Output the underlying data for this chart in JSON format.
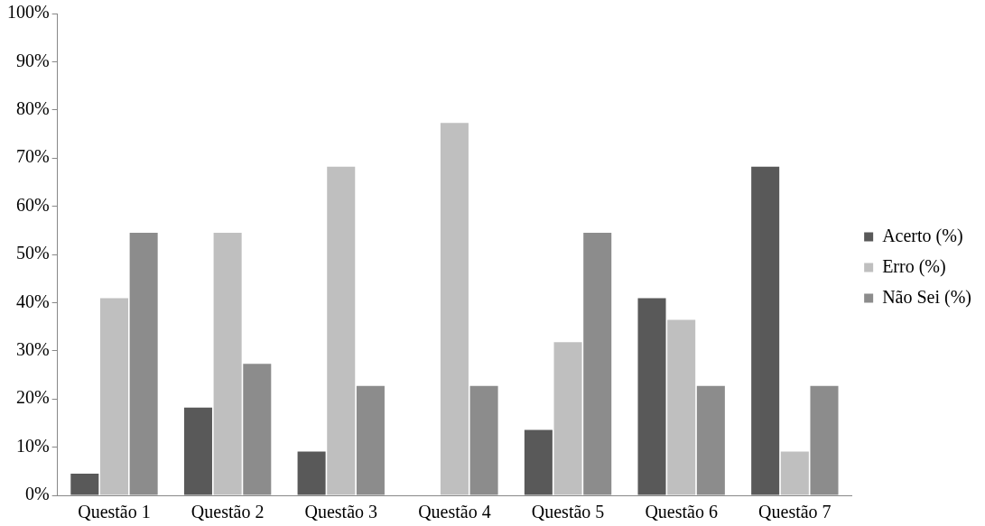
{
  "chart_data": {
    "type": "bar",
    "categories": [
      "Questão 1",
      "Questão 2",
      "Questão 3",
      "Questão 4",
      "Questão 5",
      "Questão 6",
      "Questão 7"
    ],
    "series": [
      {
        "name": "Acerto (%)",
        "color": "#595959",
        "values": [
          4.5,
          18.2,
          9.1,
          0,
          13.6,
          40.9,
          68.2
        ]
      },
      {
        "name": "Erro (%)",
        "color": "#bfbfbf",
        "values": [
          40.9,
          54.5,
          68.2,
          77.3,
          31.8,
          36.4,
          9.1
        ]
      },
      {
        "name": "Não Sei (%)",
        "color": "#8c8c8c",
        "values": [
          54.5,
          27.3,
          22.7,
          22.7,
          54.5,
          22.7,
          22.7
        ]
      }
    ],
    "ylim": [
      0,
      100
    ],
    "yticks": [
      {
        "value": 0,
        "label": "0%"
      },
      {
        "value": 10,
        "label": "10%"
      },
      {
        "value": 20,
        "label": "20%"
      },
      {
        "value": 30,
        "label": "30%"
      },
      {
        "value": 40,
        "label": "40%"
      },
      {
        "value": 50,
        "label": "50%"
      },
      {
        "value": 60,
        "label": "60%"
      },
      {
        "value": 70,
        "label": "70%"
      },
      {
        "value": 80,
        "label": "80%"
      },
      {
        "value": 90,
        "label": "90%"
      },
      {
        "value": 100,
        "label": "100%"
      }
    ],
    "grid": false,
    "legend": "right"
  }
}
